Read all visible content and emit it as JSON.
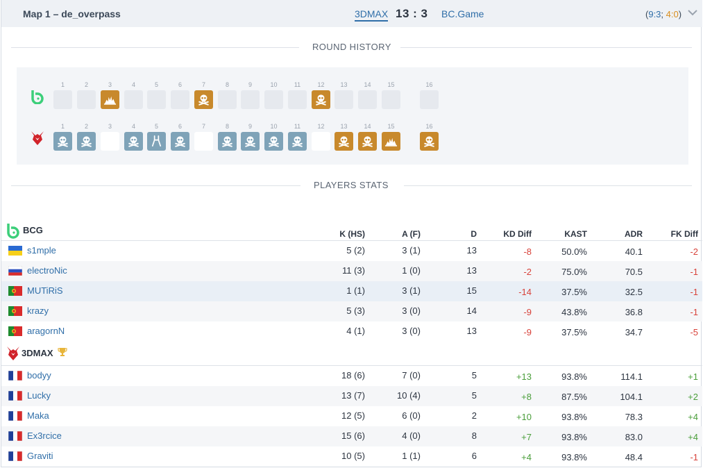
{
  "header": {
    "map_title": "Map 1 – de_overpass",
    "team_left": "3DMAX",
    "score": "13 : 3",
    "team_right": "BC.Game",
    "halves_open": "(",
    "half1": "9:3",
    "half_sep": "; ",
    "half2": "4:0",
    "halves_close": ")"
  },
  "round_history": {
    "title": "ROUND HISTORY",
    "teams": [
      {
        "name": "BCG",
        "logo": "bcg-logo",
        "rounds": [
          "",
          "",
          "bomb",
          "",
          "",
          "",
          "skull",
          "",
          "",
          "",
          "",
          "skull",
          "",
          "",
          "",
          "empty"
        ]
      },
      {
        "name": "3DMAX",
        "logo": "3dmax-logo",
        "rounds": [
          "skull",
          "skull",
          "",
          "skull",
          "defuse",
          "skull",
          "",
          "skull",
          "skull",
          "skull",
          "skull",
          "",
          "skull-orange",
          "skull-orange",
          "bomb-orange",
          "skull-orange"
        ]
      }
    ],
    "round_numbers": [
      "1",
      "2",
      "3",
      "4",
      "5",
      "6",
      "7",
      "8",
      "9",
      "10",
      "11",
      "12",
      "13",
      "14",
      "15",
      "16"
    ]
  },
  "players_stats": {
    "title": "PLAYERS STATS",
    "columns": [
      "K (HS)",
      "A (F)",
      "D",
      "KD Diff",
      "KAST",
      "ADR",
      "FK Diff"
    ],
    "teams": [
      {
        "name": "BCG",
        "winner": false,
        "players": [
          {
            "name": "s1mple",
            "flag": "ua",
            "k": "5 (2)",
            "a": "3 (1)",
            "d": "13",
            "kd": "-8",
            "kast": "50.0%",
            "adr": "40.1",
            "fk": "-2"
          },
          {
            "name": "electroNic",
            "flag": "ru",
            "k": "11 (3)",
            "a": "1 (0)",
            "d": "13",
            "kd": "-2",
            "kast": "75.0%",
            "adr": "70.5",
            "fk": "-1"
          },
          {
            "name": "MUTiRiS",
            "flag": "pt",
            "k": "1 (1)",
            "a": "3 (1)",
            "d": "15",
            "kd": "-14",
            "kast": "37.5%",
            "adr": "32.5",
            "fk": "-1"
          },
          {
            "name": "krazy",
            "flag": "pt",
            "k": "5 (3)",
            "a": "3 (0)",
            "d": "14",
            "kd": "-9",
            "kast": "43.8%",
            "adr": "36.8",
            "fk": "-1"
          },
          {
            "name": "aragornN",
            "flag": "pt",
            "k": "4 (1)",
            "a": "3 (0)",
            "d": "13",
            "kd": "-9",
            "kast": "37.5%",
            "adr": "34.7",
            "fk": "-5"
          }
        ]
      },
      {
        "name": "3DMAX",
        "winner": true,
        "players": [
          {
            "name": "bodyy",
            "flag": "fr",
            "k": "18 (6)",
            "a": "7 (0)",
            "d": "5",
            "kd": "+13",
            "kast": "93.8%",
            "adr": "114.1",
            "fk": "+1"
          },
          {
            "name": "Lucky",
            "flag": "fr",
            "k": "13 (7)",
            "a": "10 (4)",
            "d": "5",
            "kd": "+8",
            "kast": "87.5%",
            "adr": "104.1",
            "fk": "+2"
          },
          {
            "name": "Maka",
            "flag": "fr",
            "k": "12 (5)",
            "a": "6 (0)",
            "d": "2",
            "kd": "+10",
            "kast": "93.8%",
            "adr": "78.3",
            "fk": "+4"
          },
          {
            "name": "Ex3rcice",
            "flag": "fr",
            "k": "15 (6)",
            "a": "4 (0)",
            "d": "8",
            "kd": "+7",
            "kast": "93.8%",
            "adr": "83.0",
            "fk": "+4"
          },
          {
            "name": "Graviti",
            "flag": "fr",
            "k": "10 (5)",
            "a": "1 (1)",
            "d": "6",
            "kd": "+4",
            "kast": "93.8%",
            "adr": "48.4",
            "fk": "-1"
          }
        ]
      }
    ]
  },
  "colors": {
    "ct_round": "#7fa3b8",
    "t_round": "#c8892c",
    "negative": "#d8423a",
    "positive": "#4a9e3a",
    "link": "#2f6ea8"
  }
}
